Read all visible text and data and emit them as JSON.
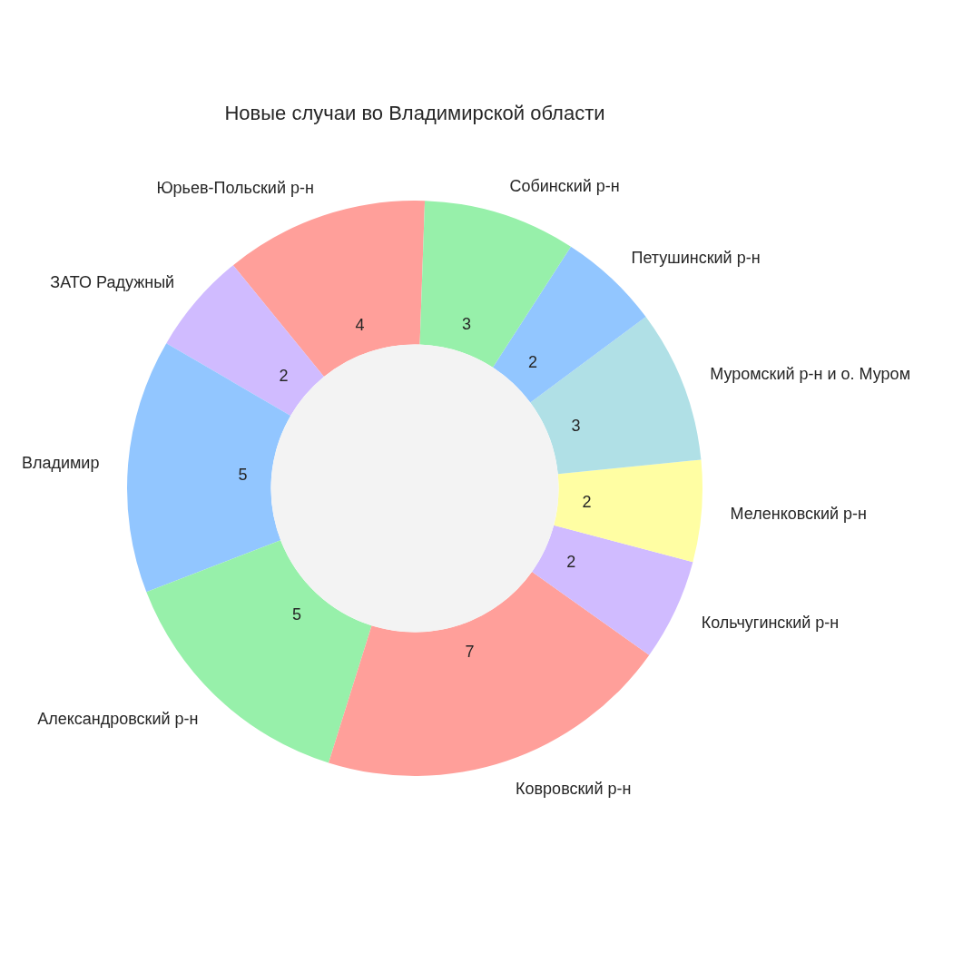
{
  "chart_data": {
    "type": "donut",
    "title": "Новые случаи во Владимирской области",
    "categories": [
      "Юрьев-Польский р-н",
      "ЗАТО Радужный",
      "Владимир",
      "Александровский р-н",
      "Ковровский р-н",
      "Кольчугинский р-н",
      "Меленковский р-н",
      "Муромский р-н и о. Муром",
      "Петушинский р-н",
      "Собинский р-н"
    ],
    "values": [
      4,
      2,
      5,
      5,
      7,
      2,
      2,
      3,
      2,
      3
    ],
    "colors": [
      "#ff9f9a",
      "#d0bbff",
      "#92c6ff",
      "#97f0aa",
      "#ff9f9a",
      "#d0bbff",
      "#fffea3",
      "#b0e0e6",
      "#92c6ff",
      "#97f0aa"
    ],
    "data_labels": true
  }
}
